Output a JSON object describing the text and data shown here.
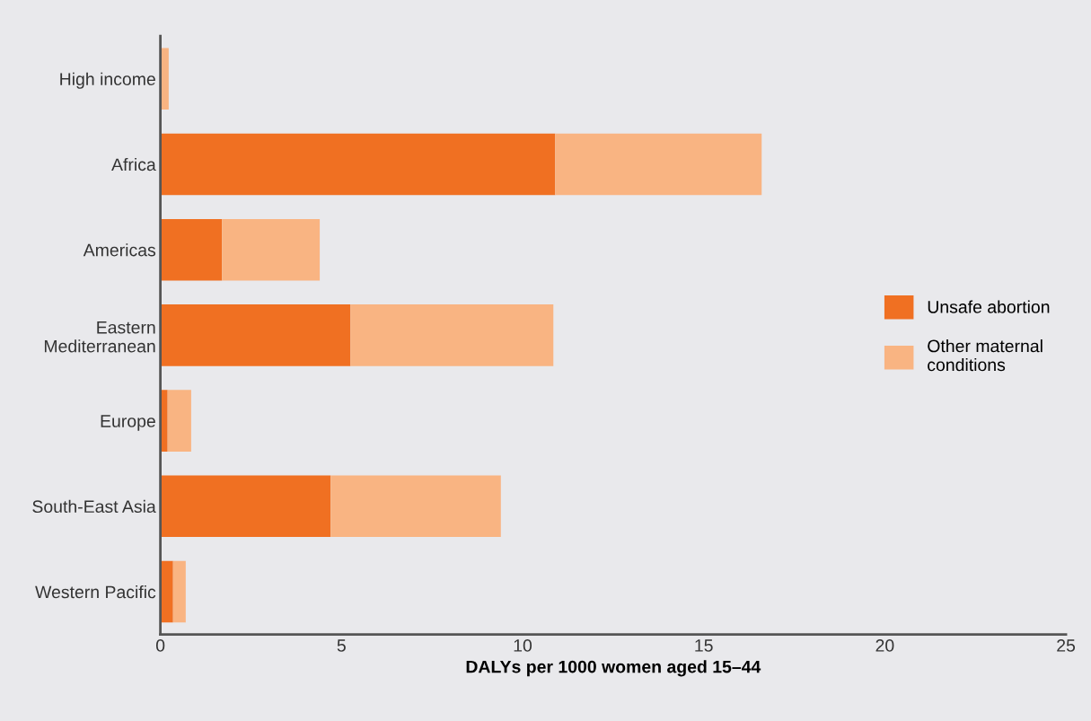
{
  "chart_data": {
    "type": "bar",
    "orientation": "horizontal",
    "stacked": true,
    "categories": [
      "High income",
      "Africa",
      "Americas",
      "Eastern\nMediterranean",
      "Europe",
      "South-East Asia",
      "Western Pacific"
    ],
    "series": [
      {
        "name": "Unsafe abortion",
        "color": "#f07022",
        "values": [
          0.03,
          10.9,
          1.7,
          5.25,
          0.2,
          4.7,
          0.35
        ]
      },
      {
        "name": "Other maternal\nconditions",
        "color": "#f9b482",
        "values": [
          0.2,
          5.7,
          2.7,
          5.6,
          0.65,
          4.7,
          0.35
        ]
      }
    ],
    "xlabel": "DALYs per 1000 women aged 15–44",
    "xlim": [
      0,
      25
    ],
    "xticks": [
      0,
      5,
      10,
      15,
      20,
      25
    ],
    "grid": false,
    "legend": "right"
  }
}
